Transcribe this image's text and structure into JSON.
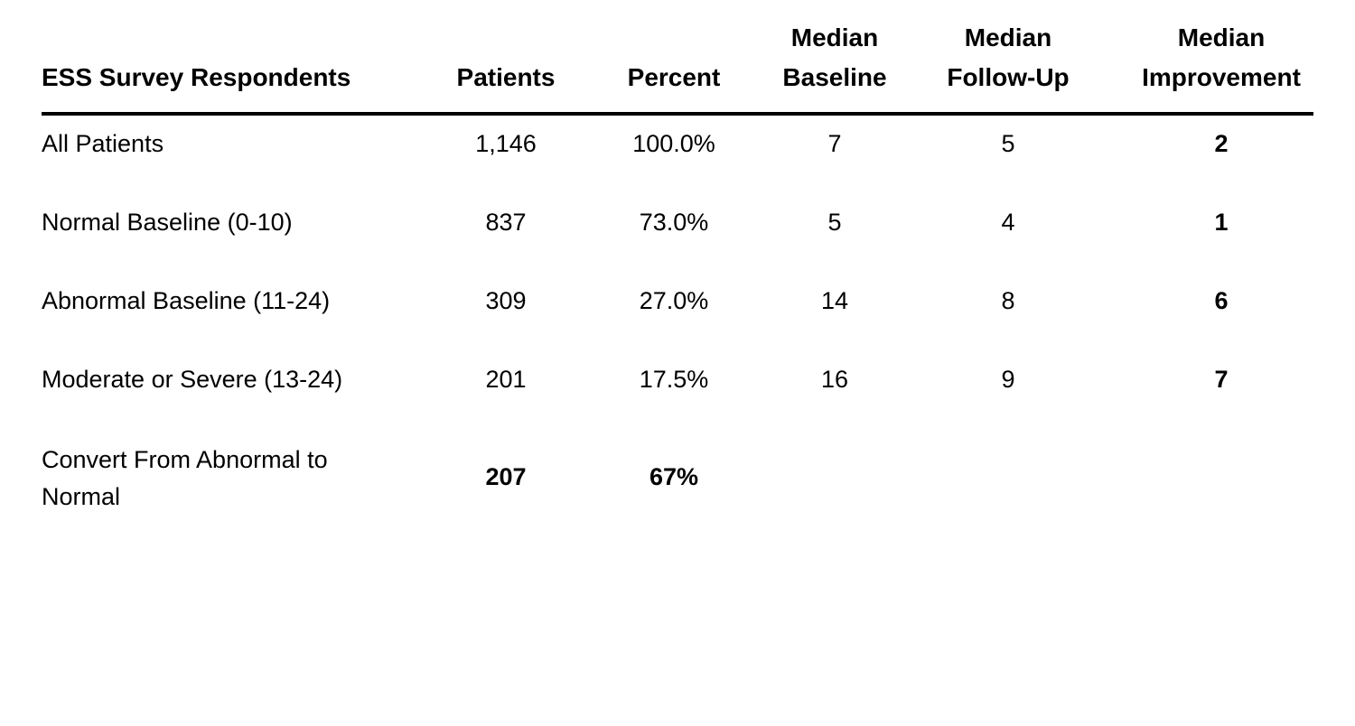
{
  "table": {
    "headers": [
      {
        "line1": "",
        "line2": "ESS Survey Respondents"
      },
      {
        "line1": "",
        "line2": "Patients"
      },
      {
        "line1": "",
        "line2": "Percent"
      },
      {
        "line1": "Median",
        "line2": "Baseline"
      },
      {
        "line1": "Median",
        "line2": "Follow-Up"
      },
      {
        "line1": "Median",
        "line2": "Improvement"
      }
    ],
    "rows": [
      {
        "label": "All Patients",
        "patients": "1,146",
        "percent": "100.0%",
        "baseline": "7",
        "followup": "5",
        "improvement": "2"
      },
      {
        "label": "Normal Baseline (0-10)",
        "patients": "837",
        "percent": "73.0%",
        "baseline": "5",
        "followup": "4",
        "improvement": "1"
      },
      {
        "label": "Abnormal Baseline (11-24)",
        "patients": "309",
        "percent": "27.0%",
        "baseline": "14",
        "followup": "8",
        "improvement": "6"
      },
      {
        "label": "Moderate or Severe (13-24)",
        "patients": "201",
        "percent": "17.5%",
        "baseline": "16",
        "followup": "9",
        "improvement": "7"
      },
      {
        "label": "Convert From Abnormal to Normal",
        "patients": "207",
        "percent": "67%",
        "baseline": "",
        "followup": "",
        "improvement": ""
      }
    ]
  }
}
